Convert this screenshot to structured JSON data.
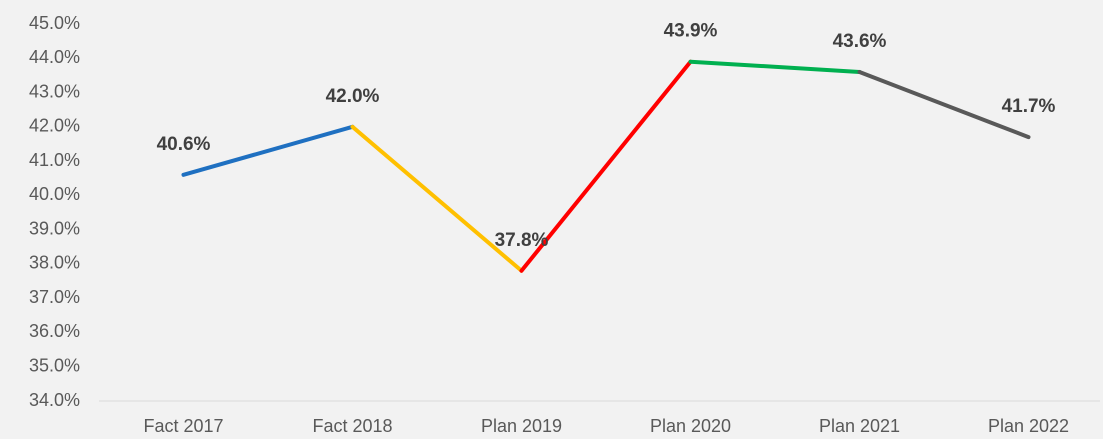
{
  "chart_data": {
    "type": "line",
    "categories": [
      "Fact 2017",
      "Fact 2018",
      "Plan 2019",
      "Plan 2020",
      "Plan 2021",
      "Plan 2022"
    ],
    "values": [
      40.6,
      42.0,
      37.8,
      43.9,
      43.6,
      41.7
    ],
    "value_labels": [
      "40.6%",
      "42.0%",
      "37.8%",
      "43.9%",
      "43.6%",
      "41.7%"
    ],
    "segment_colors": [
      "#1f70c1",
      "#ffc000",
      "#ff0000",
      "#00b050",
      "#595959"
    ],
    "ylim": [
      34,
      45
    ],
    "yticks": [
      {
        "value": 34,
        "label": "34.0%"
      },
      {
        "value": 35,
        "label": "35.0%"
      },
      {
        "value": 36,
        "label": "36.0%"
      },
      {
        "value": 37,
        "label": "37.0%"
      },
      {
        "value": 38,
        "label": "38.0%"
      },
      {
        "value": 39,
        "label": "39.0%"
      },
      {
        "value": 40,
        "label": "40.0%"
      },
      {
        "value": 41,
        "label": "41.0%"
      },
      {
        "value": 42,
        "label": "42.0%"
      },
      {
        "value": 43,
        "label": "43.0%"
      },
      {
        "value": 44,
        "label": "44.0%"
      },
      {
        "value": 45,
        "label": "45.0%"
      }
    ],
    "grid": false
  }
}
